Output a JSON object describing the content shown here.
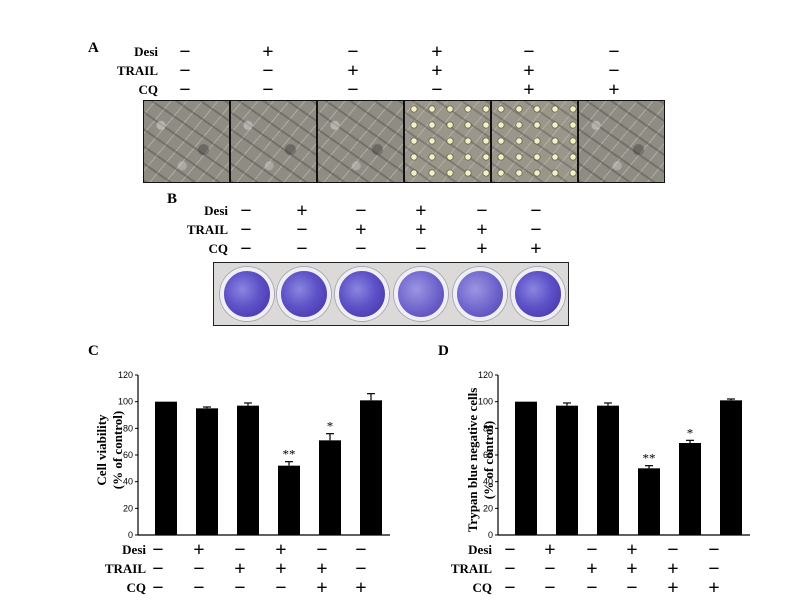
{
  "panels": {
    "A": "A",
    "B": "B",
    "C": "C",
    "D": "D"
  },
  "treatment_labels": {
    "desi": "Desi",
    "trail": "TRAIL",
    "cq": "CQ"
  },
  "treatments": {
    "desi": [
      "−",
      "+",
      "−",
      "+",
      "−",
      "−"
    ],
    "trail": [
      "−",
      "−",
      "+",
      "+",
      "+",
      "−"
    ],
    "cq": [
      "−",
      "−",
      "−",
      "−",
      "+",
      "+"
    ]
  },
  "colors": {
    "bar": "#000000",
    "crystal_violet": "#5f52c8"
  },
  "chart_data": [
    {
      "type": "bar",
      "panel": "C",
      "categories": [
        "1",
        "2",
        "3",
        "4",
        "5",
        "6"
      ],
      "values": [
        100,
        95,
        97,
        52,
        71,
        101
      ],
      "errors": [
        0,
        1,
        2,
        3,
        5,
        5
      ],
      "significance": [
        "",
        "",
        "",
        "**",
        "*",
        ""
      ],
      "ylabel_line1": "Cell viability",
      "ylabel_line2": "(% of control)",
      "ylim": [
        0,
        120
      ],
      "yticks": [
        "0",
        "20",
        "40",
        "60",
        "80",
        "100",
        "120"
      ]
    },
    {
      "type": "bar",
      "panel": "D",
      "categories": [
        "1",
        "2",
        "3",
        "4",
        "5",
        "6"
      ],
      "values": [
        100,
        97,
        97,
        50,
        69,
        101
      ],
      "errors": [
        0,
        2,
        2,
        2,
        2,
        1
      ],
      "significance": [
        "",
        "",
        "",
        "**",
        "*",
        ""
      ],
      "ylabel_line1": "Trypan blue negative cells",
      "ylabel_line2": "(% of control)",
      "ylim": [
        0,
        120
      ],
      "yticks": [
        "0",
        "20",
        "40",
        "60",
        "80",
        "100",
        "120"
      ]
    }
  ]
}
